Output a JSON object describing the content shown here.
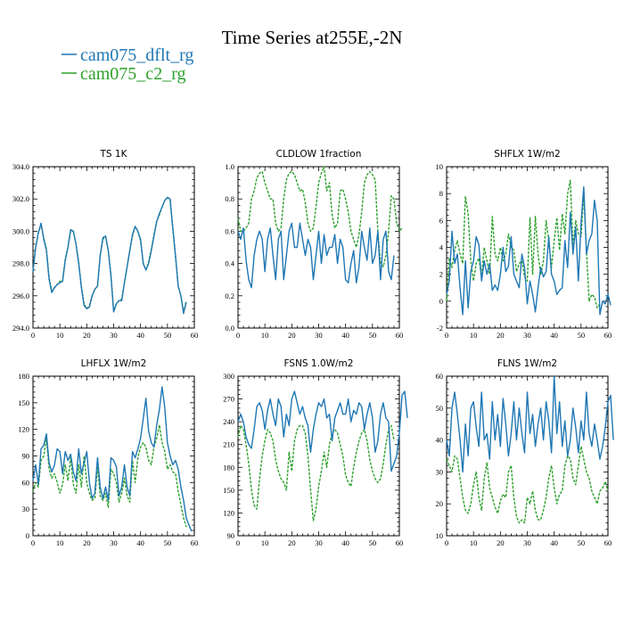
{
  "figure": {
    "title": "Time Series at255E,-2N"
  },
  "legend": [
    {
      "name": "cam075_dflt_rg",
      "color": "#1f77b4",
      "dash": "solid"
    },
    {
      "name": "cam075_c2_rg",
      "color": "#2ca02c",
      "dash": "dashed"
    }
  ],
  "chart_data": [
    {
      "type": "line",
      "title": "TS   1K",
      "xlim": [
        0,
        60
      ],
      "ylim": [
        294,
        304
      ],
      "xticks": [
        0,
        10,
        20,
        30,
        40,
        50,
        60
      ],
      "yticks": [
        294.0,
        296.0,
        298.0,
        300.0,
        302.0,
        304.0
      ],
      "ytick_labels": [
        "294.0",
        "296.0",
        "298.0",
        "300.0",
        "302.0",
        "304.0"
      ],
      "series": [
        {
          "name": "cam075_dflt_rg",
          "values": [
            297.5,
            299.0,
            299.9,
            300.5,
            299.5,
            298.8,
            297.0,
            296.2,
            296.5,
            296.7,
            296.8,
            296.9,
            298.2,
            299.0,
            300.1,
            300.0,
            299.2,
            298.0,
            296.5,
            295.4,
            295.2,
            295.3,
            296.0,
            296.4,
            296.6,
            298.5,
            299.6,
            299.7,
            298.8,
            297.2,
            295.0,
            295.5,
            295.7,
            295.7,
            296.8,
            297.8,
            298.8,
            299.8,
            300.3,
            300.0,
            299.5,
            298.0,
            297.6,
            298.0,
            298.8,
            299.7,
            300.6,
            301.1,
            301.5,
            301.9,
            302.1,
            302.0,
            300.2,
            298.5,
            296.6,
            296.0,
            294.9,
            295.6
          ]
        },
        {
          "name": "cam075_c2_rg",
          "values": [
            297.6,
            299.0,
            299.9,
            300.4,
            299.6,
            298.9,
            297.1,
            296.3,
            296.5,
            296.7,
            296.9,
            296.9,
            298.3,
            299.0,
            300.0,
            300.0,
            299.2,
            298.1,
            296.6,
            295.5,
            295.2,
            295.4,
            296.0,
            296.4,
            296.6,
            298.5,
            299.5,
            299.7,
            298.8,
            297.3,
            295.1,
            295.5,
            295.7,
            295.8,
            296.8,
            297.8,
            298.8,
            299.7,
            300.3,
            300.0,
            299.4,
            298.0,
            297.6,
            298.1,
            298.9,
            299.8,
            300.6,
            301.0,
            301.5,
            301.9,
            302.1,
            301.9,
            300.1,
            298.4,
            296.6,
            296.0,
            295.0,
            295.7
          ]
        }
      ]
    },
    {
      "type": "line",
      "title": "CLDLOW   1fraction",
      "xlim": [
        0,
        60
      ],
      "ylim": [
        0,
        1
      ],
      "xticks": [
        0,
        10,
        20,
        30,
        40,
        50,
        60
      ],
      "yticks": [
        0.0,
        0.2,
        0.4,
        0.6,
        0.8,
        1.0
      ],
      "ytick_labels": [
        "0.0",
        "0.2",
        "0.4",
        "0.6",
        "0.8",
        "1.0"
      ],
      "series": [
        {
          "name": "cam075_dflt_rg",
          "values": [
            0.6,
            0.55,
            0.62,
            0.42,
            0.3,
            0.25,
            0.45,
            0.55,
            0.6,
            0.55,
            0.35,
            0.55,
            0.62,
            0.45,
            0.3,
            0.55,
            0.6,
            0.3,
            0.45,
            0.6,
            0.65,
            0.5,
            0.5,
            0.65,
            0.55,
            0.45,
            0.55,
            0.5,
            0.3,
            0.45,
            0.6,
            0.4,
            0.58,
            0.45,
            0.5,
            0.5,
            0.58,
            0.4,
            0.55,
            0.5,
            0.3,
            0.28,
            0.4,
            0.48,
            0.28,
            0.38,
            0.6,
            0.5,
            0.42,
            0.62,
            0.4,
            0.45,
            0.6,
            0.3,
            0.55,
            0.6,
            0.35,
            0.3,
            0.45
          ]
        },
        {
          "name": "cam075_c2_rg",
          "values": [
            0.68,
            0.6,
            0.6,
            0.62,
            0.65,
            0.8,
            0.85,
            0.93,
            0.96,
            0.97,
            0.9,
            0.85,
            0.8,
            0.8,
            0.65,
            0.6,
            0.62,
            0.8,
            0.92,
            0.96,
            0.97,
            0.95,
            0.9,
            0.85,
            0.86,
            0.78,
            0.65,
            0.6,
            0.62,
            0.75,
            0.9,
            0.96,
            1.0,
            0.85,
            0.9,
            0.7,
            0.62,
            0.65,
            0.85,
            0.86,
            0.8,
            0.72,
            0.6,
            0.55,
            0.5,
            0.58,
            0.72,
            0.9,
            0.95,
            0.97,
            0.95,
            0.92,
            0.6,
            0.4,
            0.38,
            0.45,
            0.6,
            0.82,
            0.8,
            0.65,
            0.6,
            0.62
          ]
        }
      ]
    },
    {
      "type": "line",
      "title": "SHFLX   1W/m2",
      "xlim": [
        0,
        60
      ],
      "ylim": [
        -2,
        10
      ],
      "xticks": [
        0,
        10,
        20,
        30,
        40,
        50,
        60
      ],
      "yticks": [
        -2,
        0,
        2,
        4,
        6,
        8,
        10
      ],
      "ytick_labels": [
        "-2",
        "0",
        "2",
        "4",
        "6",
        "8",
        "10"
      ],
      "series": [
        {
          "name": "cam075_dflt_rg",
          "values": [
            0.5,
            1.5,
            5.2,
            2.8,
            3.5,
            1.0,
            -1.0,
            3.0,
            -0.5,
            2.2,
            3.0,
            4.8,
            4.2,
            1.5,
            3.0,
            2.0,
            2.8,
            0.8,
            1.2,
            0.8,
            2.0,
            4.0,
            2.2,
            2.6,
            4.8,
            2.0,
            1.5,
            1.0,
            3.5,
            2.5,
            -0.2,
            1.5,
            0.5,
            -0.8,
            1.0,
            2.5,
            1.8,
            2.2,
            4.8,
            2.0,
            1.5,
            0.5,
            0.8,
            1.0,
            4.5,
            2.5,
            6.6,
            3.5,
            5.5,
            1.5,
            5.8,
            8.5,
            3.5,
            4.5,
            5.0,
            7.5,
            6.0,
            -1.0,
            0.0,
            -0.2,
            0.5,
            -0.3
          ]
        },
        {
          "name": "cam075_c2_rg",
          "values": [
            0.0,
            3.2,
            2.5,
            3.8,
            4.5,
            3.5,
            2.8,
            7.8,
            6.5,
            3.0,
            1.5,
            2.8,
            3.2,
            1.8,
            4.0,
            3.0,
            2.0,
            6.3,
            3.5,
            3.0,
            4.0,
            3.0,
            3.5,
            5.0,
            4.0,
            3.8,
            2.2,
            2.8,
            3.0,
            1.8,
            1.5,
            6.2,
            2.0,
            6.3,
            3.5,
            2.0,
            3.0,
            6.0,
            4.5,
            2.5,
            4.5,
            6.2,
            3.8,
            6.5,
            5.0,
            8.0,
            9.0,
            4.0,
            6.0,
            5.0,
            4.8,
            8.0,
            3.8,
            0.0,
            0.5,
            0.3,
            -0.5,
            -0.2
          ]
        }
      ]
    },
    {
      "type": "line",
      "title": "LHFLX   1W/m2",
      "xlim": [
        0,
        60
      ],
      "ylim": [
        0,
        180
      ],
      "xticks": [
        0,
        10,
        20,
        30,
        40,
        50,
        60
      ],
      "yticks": [
        0,
        30,
        60,
        90,
        120,
        150,
        180
      ],
      "ytick_labels": [
        "0",
        "30",
        "60",
        "90",
        "120",
        "150",
        "180"
      ],
      "series": [
        {
          "name": "cam075_dflt_rg",
          "values": [
            62,
            80,
            58,
            98,
            102,
            115,
            82,
            72,
            80,
            98,
            95,
            70,
            95,
            85,
            92,
            72,
            62,
            98,
            70,
            82,
            95,
            60,
            42,
            48,
            88,
            55,
            42,
            55,
            40,
            88,
            85,
            78,
            45,
            55,
            80,
            55,
            45,
            95,
            88,
            98,
            110,
            132,
            155,
            118,
            105,
            100,
            125,
            142,
            168,
            145,
            105,
            90,
            80,
            85,
            75,
            55,
            40,
            20,
            12,
            5
          ]
        },
        {
          "name": "cam075_c2_rg",
          "values": [
            50,
            60,
            55,
            85,
            90,
            110,
            75,
            65,
            70,
            60,
            48,
            58,
            80,
            62,
            88,
            58,
            48,
            80,
            55,
            90,
            60,
            48,
            40,
            42,
            78,
            45,
            40,
            48,
            32,
            75,
            70,
            60,
            38,
            48,
            65,
            45,
            38,
            85,
            60,
            88,
            100,
            105,
            100,
            85,
            80,
            100,
            110,
            125,
            105,
            95,
            75,
            80,
            72,
            70,
            50,
            35,
            20,
            10
          ]
        }
      ]
    },
    {
      "type": "line",
      "title": "FSNS   1.0W/m2",
      "xlim": [
        0,
        60
      ],
      "ylim": [
        90,
        300
      ],
      "xticks": [
        0,
        10,
        20,
        30,
        40,
        50,
        60
      ],
      "yticks": [
        90,
        120,
        150,
        180,
        210,
        240,
        270,
        300
      ],
      "ytick_labels": [
        "90",
        "120",
        "150",
        "180",
        "210",
        "240",
        "270",
        "300"
      ],
      "series": [
        {
          "name": "cam075_dflt_rg",
          "values": [
            240,
            250,
            240,
            220,
            210,
            205,
            230,
            260,
            265,
            255,
            230,
            255,
            270,
            250,
            235,
            270,
            260,
            220,
            250,
            235,
            270,
            280,
            265,
            250,
            260,
            245,
            235,
            200,
            230,
            250,
            265,
            260,
            270,
            245,
            250,
            215,
            245,
            255,
            265,
            250,
            250,
            270,
            240,
            255,
            250,
            265,
            260,
            230,
            250,
            265,
            245,
            200,
            215,
            250,
            265,
            245,
            240,
            175,
            185,
            195,
            225,
            275,
            280,
            245
          ]
        },
        {
          "name": "cam075_c2_rg",
          "values": [
            220,
            235,
            230,
            210,
            185,
            150,
            130,
            125,
            165,
            195,
            215,
            230,
            225,
            215,
            190,
            175,
            165,
            160,
            150,
            200,
            175,
            215,
            230,
            235,
            235,
            225,
            195,
            150,
            110,
            125,
            155,
            175,
            200,
            180,
            210,
            225,
            230,
            225,
            210,
            195,
            170,
            160,
            155,
            180,
            200,
            215,
            225,
            230,
            215,
            190,
            175,
            165,
            160,
            165,
            185,
            210,
            230,
            235,
            215
          ]
        }
      ]
    },
    {
      "type": "line",
      "title": "FLNS   1W/m2",
      "xlim": [
        0,
        60
      ],
      "ylim": [
        10,
        60
      ],
      "xticks": [
        0,
        10,
        20,
        30,
        40,
        50,
        60
      ],
      "yticks": [
        10,
        20,
        30,
        40,
        50,
        60
      ],
      "ytick_labels": [
        "10",
        "20",
        "30",
        "40",
        "50",
        "60"
      ],
      "series": [
        {
          "name": "cam075_dflt_rg",
          "values": [
            40,
            35,
            50,
            55,
            48,
            40,
            30,
            45,
            35,
            50,
            52,
            44,
            38,
            55,
            40,
            42,
            34,
            52,
            40,
            48,
            38,
            53,
            45,
            35,
            42,
            52,
            40,
            50,
            42,
            36,
            55,
            42,
            48,
            38,
            45,
            50,
            40,
            52,
            46,
            36,
            60,
            42,
            52,
            38,
            46,
            35,
            40,
            50,
            44,
            36,
            46,
            40,
            55,
            42,
            38,
            45,
            40,
            34,
            38,
            44,
            52,
            54,
            40
          ]
        },
        {
          "name": "cam075_c2_rg",
          "values": [
            34,
            32,
            30,
            35,
            34,
            28,
            22,
            18,
            17,
            20,
            26,
            30,
            22,
            18,
            28,
            33,
            25,
            22,
            19,
            17,
            21,
            23,
            22,
            30,
            32,
            22,
            16,
            14,
            15,
            14,
            22,
            20,
            24,
            18,
            15,
            15,
            18,
            22,
            28,
            32,
            25,
            20,
            23,
            24,
            32,
            35,
            34,
            28,
            26,
            32,
            38,
            34,
            30,
            28,
            24,
            22,
            20,
            24,
            25,
            27,
            24
          ]
        }
      ]
    }
  ]
}
